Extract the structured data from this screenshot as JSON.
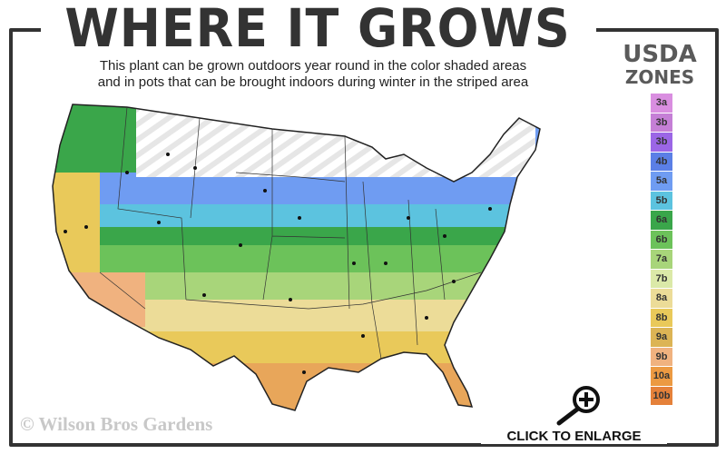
{
  "header": {
    "title": "WHERE IT GROWS",
    "subtitle_line1": "This plant can be grown outdoors year round in the color shaded areas",
    "subtitle_line2": "and in pots that can be brought indoors during winter in the striped area"
  },
  "legend": {
    "title_line1": "USDA",
    "title_line2": "ZONES",
    "zones": [
      {
        "label": "3a",
        "color": "#d98ee0"
      },
      {
        "label": "3b",
        "color": "#c57fd6"
      },
      {
        "label": "3b",
        "color": "#9b66e6"
      },
      {
        "label": "4b",
        "color": "#5b7fe6"
      },
      {
        "label": "5a",
        "color": "#6f9cf2"
      },
      {
        "label": "5b",
        "color": "#5cc3df"
      },
      {
        "label": "6a",
        "color": "#3aa64a"
      },
      {
        "label": "6b",
        "color": "#6cc25a"
      },
      {
        "label": "7a",
        "color": "#a8d57a"
      },
      {
        "label": "7b",
        "color": "#dbe9a8"
      },
      {
        "label": "8a",
        "color": "#ecdc98"
      },
      {
        "label": "8b",
        "color": "#e9c95a"
      },
      {
        "label": "9a",
        "color": "#dcb455"
      },
      {
        "label": "9b",
        "color": "#f0b27f"
      },
      {
        "label": "10a",
        "color": "#ec9a42"
      },
      {
        "label": "10b",
        "color": "#e5813a"
      }
    ]
  },
  "footer": {
    "copyright": "© Wilson Bros Gardens",
    "enlarge_label": "CLICK TO ENLARGE"
  },
  "icons": {
    "enlarge": "magnifier-plus-icon"
  }
}
